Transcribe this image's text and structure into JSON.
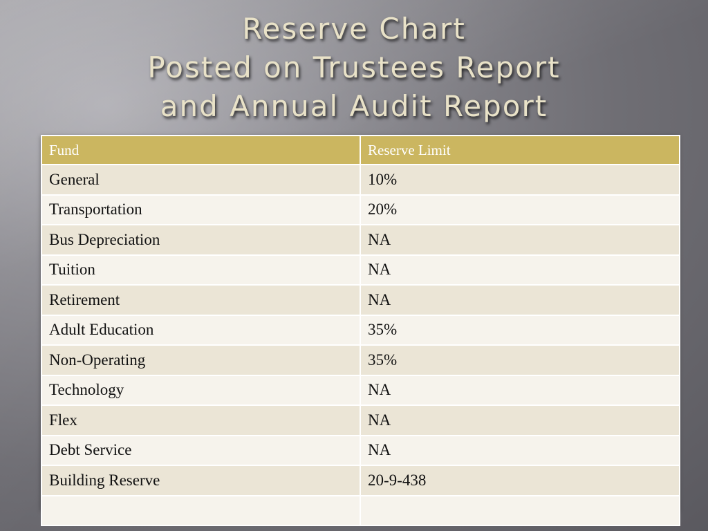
{
  "title": {
    "line1": "Reserve Chart",
    "line2": "Posted on Trustees Report",
    "line3": "and Annual Audit Report"
  },
  "table": {
    "headers": [
      "Fund",
      "Reserve Limit"
    ],
    "rows": [
      [
        "General",
        "10%"
      ],
      [
        "Transportation",
        "20%"
      ],
      [
        "Bus Depreciation",
        "NA"
      ],
      [
        "Tuition",
        "NA"
      ],
      [
        "Retirement",
        "NA"
      ],
      [
        "Adult Education",
        "35%"
      ],
      [
        "Non-Operating",
        "35%"
      ],
      [
        "Technology",
        "NA"
      ],
      [
        "Flex",
        "NA"
      ],
      [
        "Debt Service",
        "NA"
      ],
      [
        "Building Reserve",
        "20-9-438"
      ],
      [
        "",
        ""
      ]
    ]
  },
  "colors": {
    "header_bg": "#cbb660",
    "row_odd": "#ebe5d6",
    "row_even": "#f6f3ec",
    "title_text": "#e9e2c8"
  }
}
